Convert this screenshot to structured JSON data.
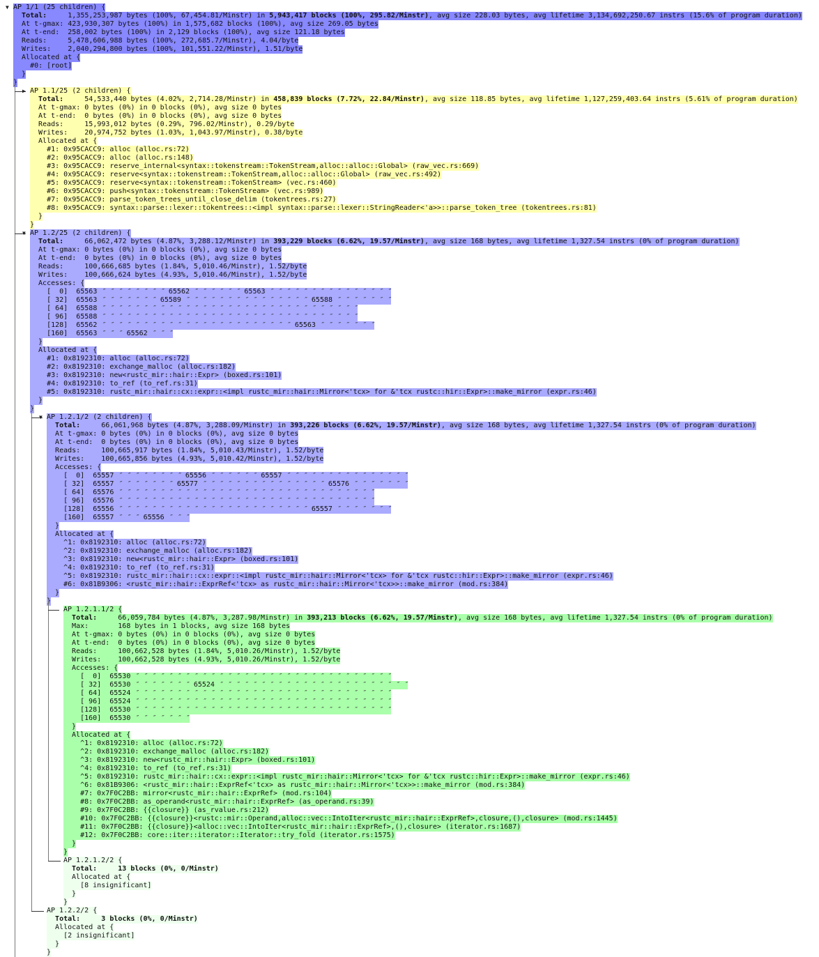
{
  "root": {
    "header": "AP 1/1 (25 children) {",
    "toggle": "▼",
    "bg": "#8888ff",
    "total": {
      "label": "Total:",
      "bytes": "1,355,253,987 bytes (100%, 67,454.81/Minstr) in ",
      "blocks": "5,943,417 blocks (100%, 295.82/Minstr)",
      "rest": ", avg size 228.03 bytes, avg lifetime 3,134,692,250.67 instrs (15.6% of program duration)"
    },
    "stats": [
      [
        "At t-gmax:",
        "423,930,307 bytes (100%) in 1,575,682 blocks (100%), avg size 269.05 bytes"
      ],
      [
        "At t-end:",
        "258,002 bytes (100%) in 2,129 blocks (100%), avg size 121.18 bytes"
      ],
      [
        "Reads:",
        "5,478,606,988 bytes (100%, 272,685.7/Minstr), 4.04/byte"
      ],
      [
        "Writes:",
        "2,040,294,800 bytes (100%, 101,551.22/Minstr), 1.51/byte"
      ]
    ],
    "allocated_label": "Allocated at {",
    "allocated": [
      "#0: [root]"
    ],
    "children": [
      {
        "header": "AP 1.1/25 (2 children) {",
        "toggle": "▶",
        "branch": "├",
        "bg": "#ffffb0",
        "total": {
          "label": "Total:",
          "bytes": "54,533,440 bytes (4.02%, 2,714.28/Minstr) in ",
          "blocks": "458,839 blocks (7.72%, 22.84/Minstr)",
          "rest": ", avg size 118.85 bytes, avg lifetime 1,127,259,403.64 instrs (5.61% of program duration)"
        },
        "stats": [
          [
            "At t-gmax:",
            "0 bytes (0%) in 0 blocks (0%), avg size 0 bytes"
          ],
          [
            "At t-end:",
            "0 bytes (0%) in 0 blocks (0%), avg size 0 bytes"
          ],
          [
            "Reads:",
            "15,993,012 bytes (0.29%, 796.02/Minstr), 0.29/byte"
          ],
          [
            "Writes:",
            "20,974,752 bytes (1.03%, 1,043.97/Minstr), 0.38/byte"
          ]
        ],
        "allocated_label": "Allocated at {",
        "allocated": [
          "#1: 0x95CACC9: alloc (alloc.rs:72)",
          "#2: 0x95CACC9: alloc (alloc.rs:148)",
          "#3: 0x95CACC9: reserve_internal<syntax::tokenstream::TokenStream,alloc::alloc::Global> (raw_vec.rs:669)",
          "#4: 0x95CACC9: reserve<syntax::tokenstream::TokenStream,alloc::alloc::Global> (raw_vec.rs:492)",
          "#5: 0x95CACC9: reserve<syntax::tokenstream::TokenStream> (vec.rs:460)",
          "#6: 0x95CACC9: push<syntax::tokenstream::TokenStream> (vec.rs:989)",
          "#7: 0x95CACC9: parse_token_trees_until_close_delim (tokentrees.rs:27)",
          "#8: 0x95CACC9: syntax::parse::lexer::tokentrees::<impl syntax::parse::lexer::StringReader<'a>>::parse_token_tree (tokentrees.rs:81)"
        ],
        "children": []
      },
      {
        "header": "AP 1.2/25 (2 children) {",
        "toggle": "▼",
        "branch": "├",
        "bg": "#aaaaff",
        "total": {
          "label": "Total:",
          "bytes": "66,062,472 bytes (4.87%, 3,288.12/Minstr) in ",
          "blocks": "393,229 blocks (6.62%, 19.57/Minstr)",
          "rest": ", avg size 168 bytes, avg lifetime 1,327.54 instrs (0% of program duration)"
        },
        "stats": [
          [
            "At t-gmax:",
            "0 bytes (0%) in 0 blocks (0%), avg size 0 bytes"
          ],
          [
            "At t-end:",
            "0 bytes (0%) in 0 blocks (0%), avg size 0 bytes"
          ],
          [
            "Reads:",
            "100,666,685 bytes (1.84%, 5,010.46/Minstr), 1.52/byte"
          ],
          [
            "Writes:",
            "100,666,624 bytes (4.93%, 5,010.46/Minstr), 1.52/byte"
          ]
        ],
        "accesses_label": "Accesses: {",
        "ditto": "″",
        "accesses": [
          {
            "offset": "0",
            "runs": [
              [
                65563,
                9
              ],
              [
                65562,
                7
              ],
              [
                65563,
                16
              ]
            ]
          },
          {
            "offset": "32",
            "runs": [
              [
                65563,
                8
              ],
              [
                65589,
                16
              ],
              [
                65588,
                8
              ]
            ]
          },
          {
            "offset": "64",
            "runs": [
              [
                65588,
                32
              ]
            ]
          },
          {
            "offset": "96",
            "runs": [
              [
                65588,
                32
              ]
            ]
          },
          {
            "offset": "128",
            "runs": [
              [
                65562,
                24
              ],
              [
                65563,
                8
              ]
            ]
          },
          {
            "offset": "160",
            "runs": [
              [
                65563,
                4
              ],
              [
                65562,
                4
              ]
            ]
          }
        ],
        "allocated_label": "Allocated at {",
        "allocated": [
          "#1: 0x8192310: alloc (alloc.rs:72)",
          "#2: 0x8192310: exchange_malloc (alloc.rs:182)",
          "#3: 0x8192310: new<rustc_mir::hair::Expr> (boxed.rs:101)",
          "#4: 0x8192310: to_ref (to_ref.rs:31)",
          "#5: 0x8192310: rustc_mir::hair::cx::expr::<impl rustc_mir::hair::Mirror<'tcx> for &'tcx rustc::hir::Expr>::make_mirror (expr.rs:46)"
        ],
        "children": [
          {
            "header": "AP 1.2.1/2 (2 children) {",
            "toggle": "▼",
            "branch": "├",
            "bg": "#aaaaff",
            "total": {
              "label": "Total:",
              "bytes": "66,061,968 bytes (4.87%, 3,288.09/Minstr) in ",
              "blocks": "393,226 blocks (6.62%, 19.57/Minstr)",
              "rest": ", avg size 168 bytes, avg lifetime 1,327.54 instrs (0% of program duration)"
            },
            "stats": [
              [
                "At t-gmax:",
                "0 bytes (0%) in 0 blocks (0%), avg size 0 bytes"
              ],
              [
                "At t-end:",
                "0 bytes (0%) in 0 blocks (0%), avg size 0 bytes"
              ],
              [
                "Reads:",
                "100,665,917 bytes (1.84%, 5,010.43/Minstr), 1.52/byte"
              ],
              [
                "Writes:",
                "100,665,856 bytes (4.93%, 5,010.42/Minstr), 1.52/byte"
              ]
            ],
            "accesses_label": "Accesses: {",
            "ditto": "″",
            "accesses": [
              {
                "offset": "0",
                "runs": [
                  [
                    65557,
                    9
                  ],
                  [
                    65556,
                    7
                  ],
                  [
                    65557,
                    16
                  ]
                ]
              },
              {
                "offset": "32",
                "runs": [
                  [
                    65557,
                    8
                  ],
                  [
                    65577,
                    16
                  ],
                  [
                    65576,
                    8
                  ]
                ]
              },
              {
                "offset": "64",
                "runs": [
                  [
                    65576,
                    32
                  ]
                ]
              },
              {
                "offset": "96",
                "runs": [
                  [
                    65576,
                    32
                  ]
                ]
              },
              {
                "offset": "128",
                "runs": [
                  [
                    65556,
                    24
                  ],
                  [
                    65557,
                    8
                  ]
                ]
              },
              {
                "offset": "160",
                "runs": [
                  [
                    65557,
                    4
                  ],
                  [
                    65556,
                    4
                  ]
                ]
              }
            ],
            "allocated_label": "Allocated at {",
            "allocated": [
              "^1: 0x8192310: alloc (alloc.rs:72)",
              "^2: 0x8192310: exchange_malloc (alloc.rs:182)",
              "^3: 0x8192310: new<rustc_mir::hair::Expr> (boxed.rs:101)",
              "^4: 0x8192310: to_ref (to_ref.rs:31)",
              "^5: 0x8192310: rustc_mir::hair::cx::expr::<impl rustc_mir::hair::Mirror<'tcx> for &'tcx rustc::hir::Expr>::make_mirror (expr.rs:46)",
              "#6: 0x81B9306: <rustc_mir::hair::ExprRef<'tcx> as rustc_mir::hair::Mirror<'tcx>>::make_mirror (mod.rs:384)"
            ],
            "children": [
              {
                "header": "AP 1.2.1.1/2 {",
                "toggle": "",
                "branch": "├",
                "bg": "#aaffaa",
                "total": {
                  "label": "Total:",
                  "bytes": "66,059,784 bytes (4.87%, 3,287.98/Minstr) in ",
                  "blocks": "393,213 blocks (6.62%, 19.57/Minstr)",
                  "rest": ", avg size 168 bytes, avg lifetime 1,327.54 instrs (0% of program duration)"
                },
                "stats": [
                  [
                    "Max:",
                    "168 bytes in 1 blocks, avg size 168 bytes"
                  ],
                  [
                    "At t-gmax:",
                    "0 bytes (0%) in 0 blocks (0%), avg size 0 bytes"
                  ],
                  [
                    "At t-end:",
                    "0 bytes (0%) in 0 blocks (0%), avg size 0 bytes"
                  ],
                  [
                    "Reads:",
                    "100,662,528 bytes (1.84%, 5,010.26/Minstr), 1.52/byte"
                  ],
                  [
                    "Writes:",
                    "100,662,528 bytes (4.93%, 5,010.26/Minstr), 1.52/byte"
                  ]
                ],
                "accesses_label": "Accesses: {",
                "ditto": "″",
                "accesses": [
                  {
                    "offset": "0",
                    "runs": [
                      [
                        65530,
                        32
                      ]
                    ]
                  },
                  {
                    "offset": "32",
                    "runs": [
                      [
                        65530,
                        8
                      ],
                      [
                        65524,
                        24
                      ]
                    ]
                  },
                  {
                    "offset": "64",
                    "runs": [
                      [
                        65524,
                        32
                      ]
                    ]
                  },
                  {
                    "offset": "96",
                    "runs": [
                      [
                        65524,
                        32
                      ]
                    ]
                  },
                  {
                    "offset": "128",
                    "runs": [
                      [
                        65530,
                        32
                      ]
                    ]
                  },
                  {
                    "offset": "160",
                    "runs": [
                      [
                        65530,
                        8
                      ]
                    ]
                  }
                ],
                "allocated_label": "Allocated at {",
                "allocated": [
                  "^1: 0x8192310: alloc (alloc.rs:72)",
                  "^2: 0x8192310: exchange_malloc (alloc.rs:182)",
                  "^3: 0x8192310: new<rustc_mir::hair::Expr> (boxed.rs:101)",
                  "^4: 0x8192310: to_ref (to_ref.rs:31)",
                  "^5: 0x8192310: rustc_mir::hair::cx::expr::<impl rustc_mir::hair::Mirror<'tcx> for &'tcx rustc::hir::Expr>::make_mirror (expr.rs:46)",
                  "^6: 0x81B9306: <rustc_mir::hair::ExprRef<'tcx> as rustc_mir::hair::Mirror<'tcx>>::make_mirror (mod.rs:384)",
                  "#7: 0x7F0C2BB: mirror<rustc_mir::hair::ExprRef> (mod.rs:104)",
                  "#8: 0x7F0C2BB: as_operand<rustc_mir::hair::ExprRef> (as_operand.rs:39)",
                  "#9: 0x7F0C2BB: {{closure}} (as_rvalue.rs:212)",
                  "#10: 0x7F0C2BB: {{closure}}<rustc::mir::Operand,alloc::vec::IntoIter<rustc_mir::hair::ExprRef>,closure,(),closure> (mod.rs:1445)",
                  "#11: 0x7F0C2BB: {{closure}}<alloc::vec::IntoIter<rustc_mir::hair::ExprRef>,(),closure> (iterator.rs:1687)",
                  "#12: 0x7F0C2BB: core::iter::iterator::Iterator::try_fold (iterator.rs:1575)"
                ],
                "children": []
              },
              {
                "header": "AP 1.2.1.2/2 {",
                "toggle": "",
                "branch": "└",
                "bg": "#eeffee",
                "total": {
                  "label": "Total:",
                  "bytes": "",
                  "blocks": "13 blocks (0%, 0/Minstr)",
                  "rest": ""
                },
                "stats": [],
                "allocated_label": "Allocated at {",
                "allocated": [
                  "[8 insignificant]"
                ],
                "children": []
              }
            ]
          },
          {
            "header": "AP 1.2.2/2 {",
            "toggle": "",
            "branch": "└",
            "bg": "#eeffee",
            "total": {
              "label": "Total:",
              "bytes": "",
              "blocks": "3 blocks (0%, 0/Minstr)",
              "rest": ""
            },
            "stats": [],
            "allocated_label": "Allocated at {",
            "allocated": [
              "[2 insignificant]"
            ],
            "children": []
          }
        ]
      }
    ]
  }
}
